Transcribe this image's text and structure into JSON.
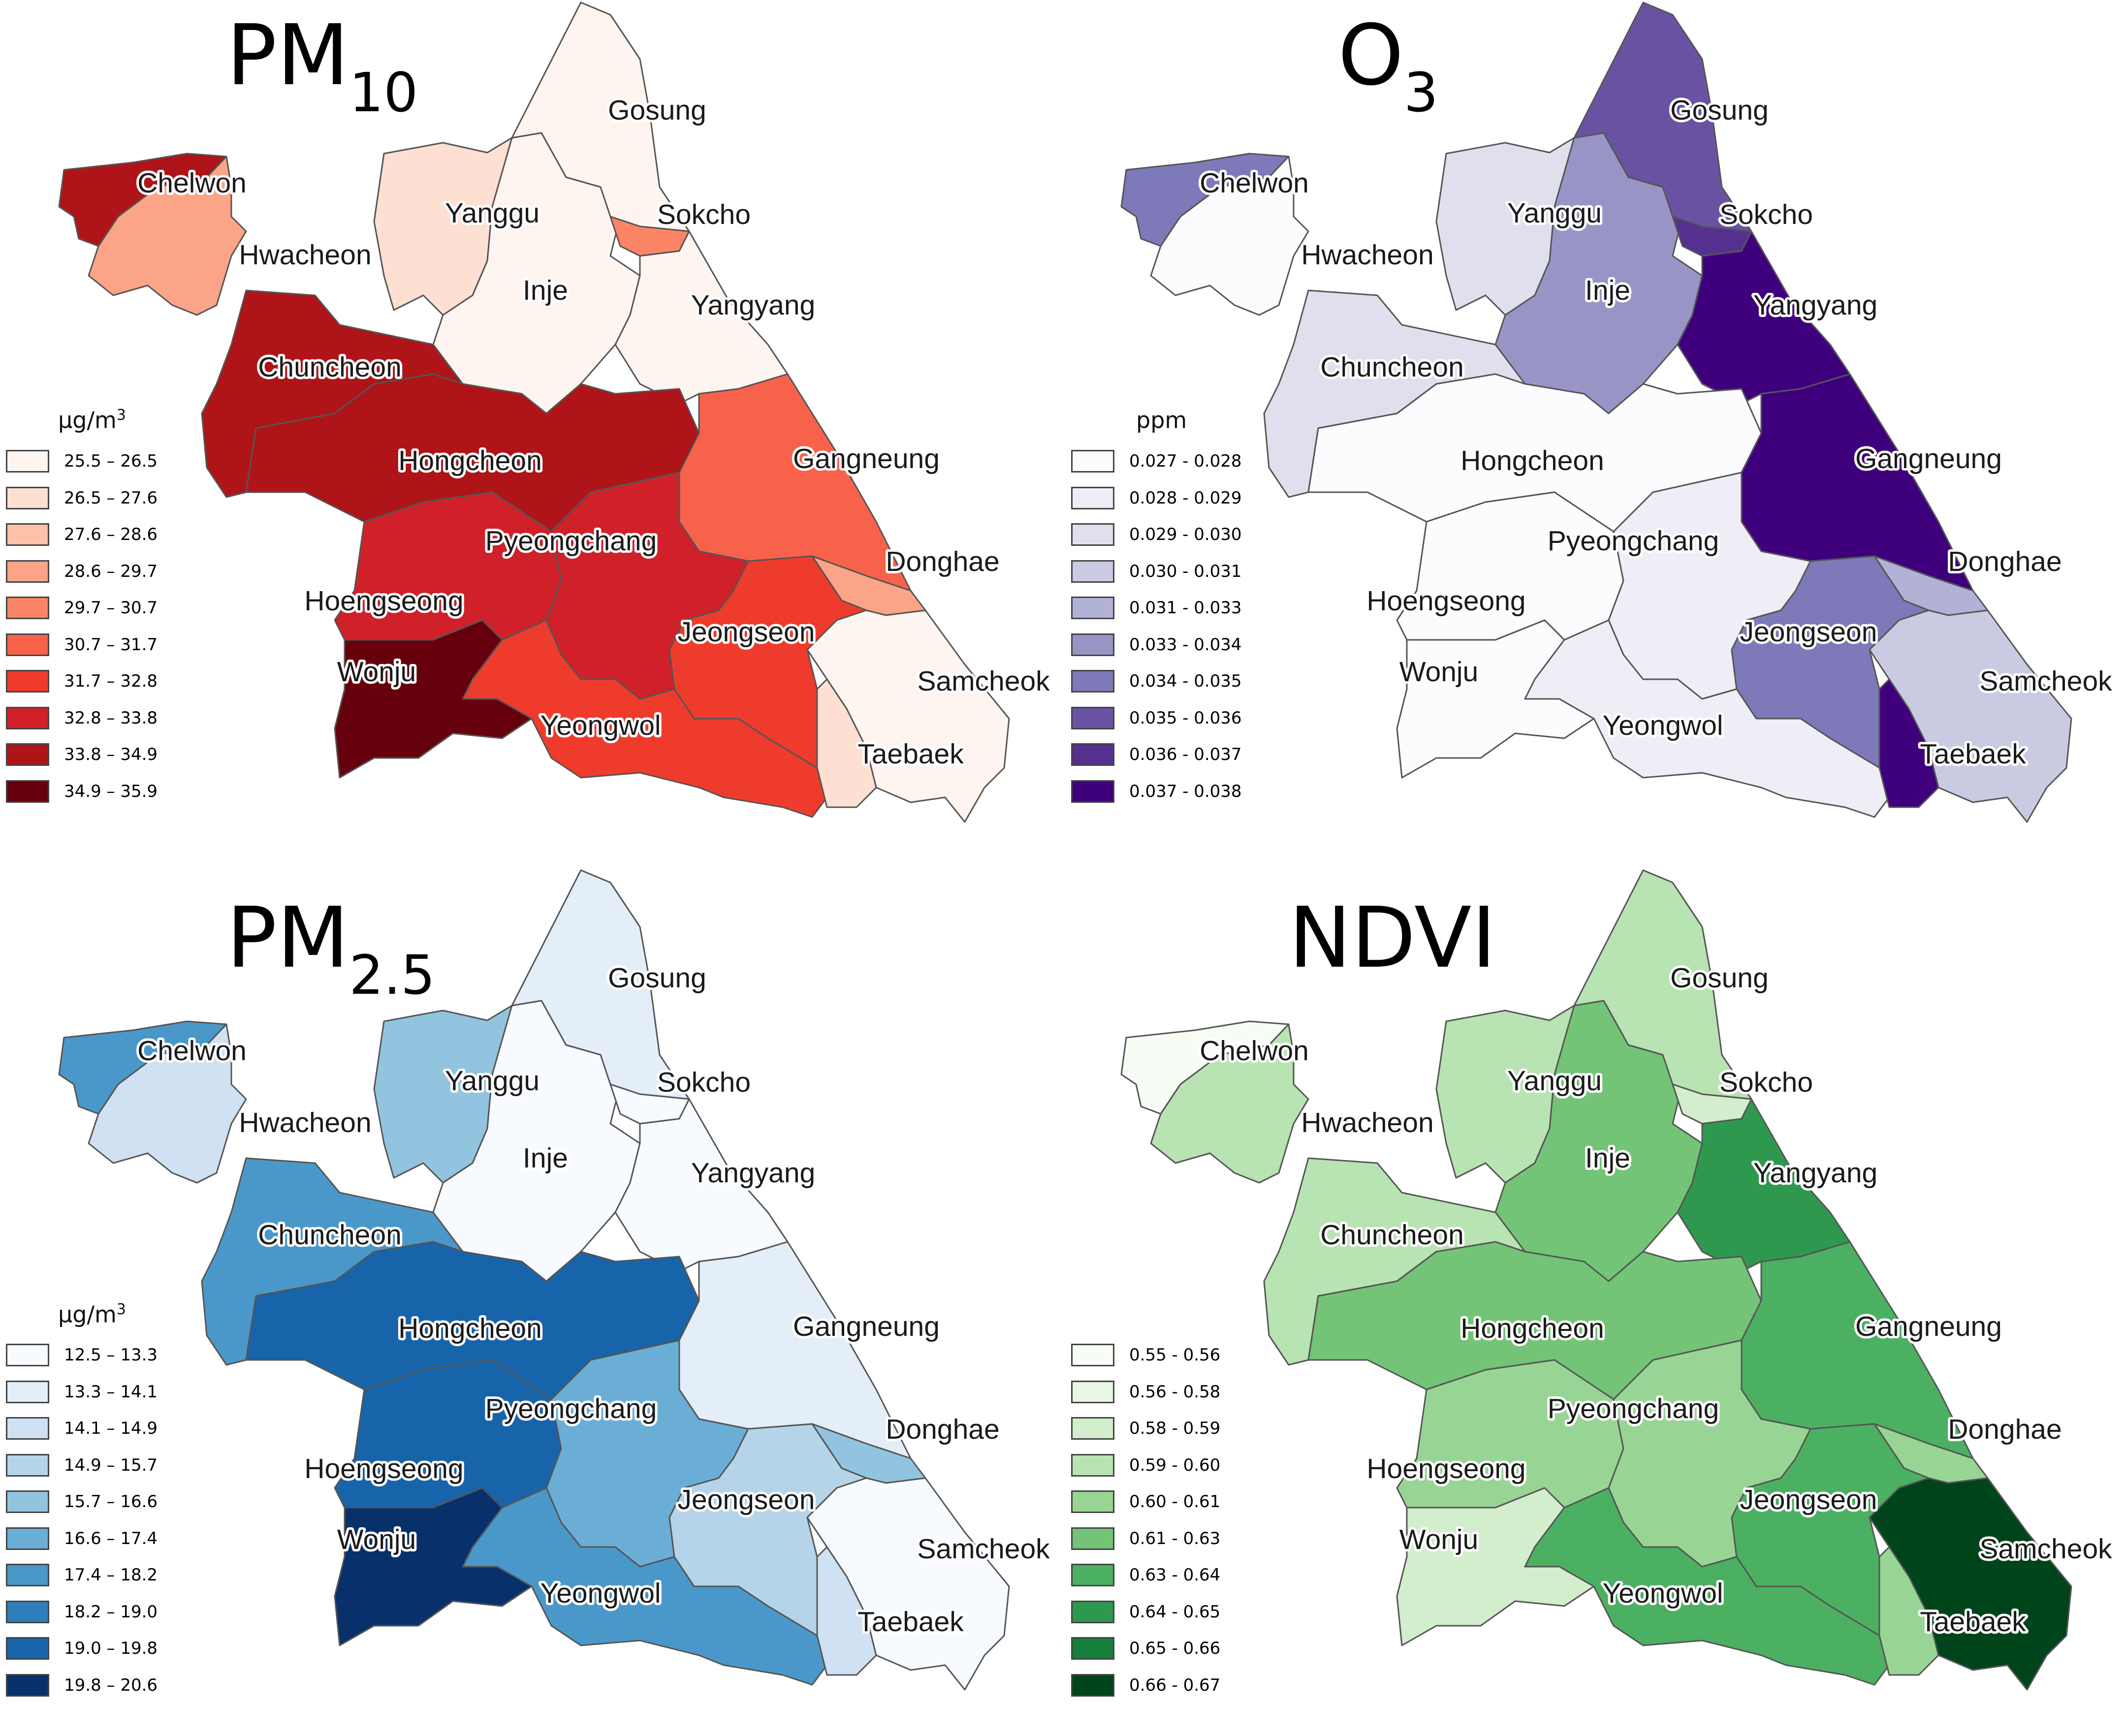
{
  "panels": [
    {
      "id": "pm10",
      "title_main": "PM",
      "title_sub": "10",
      "unit_main": "μg/m",
      "unit_sup": "3",
      "legend": [
        {
          "label": "25.5 – 26.5",
          "color": "#fff5f0"
        },
        {
          "label": "26.5 – 27.6",
          "color": "#fde0d2"
        },
        {
          "label": "27.6 – 28.6",
          "color": "#fcc3aa"
        },
        {
          "label": "28.6 – 29.7",
          "color": "#fca487"
        },
        {
          "label": "29.7 – 30.7",
          "color": "#fb8466"
        },
        {
          "label": "30.7 – 31.7",
          "color": "#f8624a"
        },
        {
          "label": "31.7 – 32.8",
          "color": "#ef3b2c"
        },
        {
          "label": "32.8 – 33.8",
          "color": "#d0202a"
        },
        {
          "label": "33.8 – 34.9",
          "color": "#af1419"
        },
        {
          "label": "34.9 – 35.9",
          "color": "#67000d"
        }
      ],
      "classes": {
        "Chelwon": 8,
        "Hwacheon": 3,
        "Yanggu": 1,
        "Inje": 0,
        "Gosung": 0,
        "Sokcho": 4,
        "Yangyang": 0,
        "Chuncheon": 8,
        "Hongcheon": 8,
        "Gangneung": 5,
        "Pyeongchang": 7,
        "Hoengseong": 7,
        "Donghae": 3,
        "Jeongseon": 6,
        "Wonju": 9,
        "Yeongwol": 6,
        "Samcheok": 0,
        "Taebaek": 1
      }
    },
    {
      "id": "o3",
      "title_main": "O",
      "title_sub": "3",
      "unit_main": "ppm",
      "unit_sup": "",
      "legend": [
        {
          "label": "0.027 - 0.028",
          "color": "#fcfbfd"
        },
        {
          "label": "0.028 - 0.029",
          "color": "#efedf5"
        },
        {
          "label": "0.029 - 0.030",
          "color": "#e0dfee"
        },
        {
          "label": "0.030 - 0.031",
          "color": "#cacae2"
        },
        {
          "label": "0.031 - 0.033",
          "color": "#b2b1d6"
        },
        {
          "label": "0.033 - 0.034",
          "color": "#9895c6"
        },
        {
          "label": "0.034 - 0.035",
          "color": "#7e79b8"
        },
        {
          "label": "0.035 - 0.036",
          "color": "#6a52a3"
        },
        {
          "label": "0.036 - 0.037",
          "color": "#56308f"
        },
        {
          "label": "0.037 - 0.038",
          "color": "#3f007d"
        }
      ],
      "classes": {
        "Chelwon": 6,
        "Hwacheon": 0,
        "Yanggu": 2,
        "Inje": 5,
        "Gosung": 7,
        "Sokcho": 8,
        "Yangyang": 9,
        "Chuncheon": 2,
        "Hongcheon": 0,
        "Gangneung": 9,
        "Pyeongchang": 1,
        "Hoengseong": 0,
        "Donghae": 4,
        "Jeongseon": 6,
        "Wonju": 0,
        "Yeongwol": 1,
        "Samcheok": 3,
        "Taebaek": 9
      }
    },
    {
      "id": "pm25",
      "title_main": "PM",
      "title_sub": "2.5",
      "unit_main": "μg/m",
      "unit_sup": "3",
      "legend": [
        {
          "label": "12.5 – 13.3",
          "color": "#f7fbff"
        },
        {
          "label": "13.3 – 14.1",
          "color": "#e3eef9"
        },
        {
          "label": "14.1 – 14.9",
          "color": "#cfe1f2"
        },
        {
          "label": "14.9 – 15.7",
          "color": "#b5d4e9"
        },
        {
          "label": "15.7 – 16.6",
          "color": "#93c4df"
        },
        {
          "label": "16.6 – 17.4",
          "color": "#6aaed6"
        },
        {
          "label": "17.4 – 18.2",
          "color": "#4a98c9"
        },
        {
          "label": "18.2 – 19.0",
          "color": "#2e7ebc"
        },
        {
          "label": "19.0 – 19.8",
          "color": "#1764ab"
        },
        {
          "label": "19.8 – 20.6",
          "color": "#08306b"
        }
      ],
      "classes": {
        "Chelwon": 6,
        "Hwacheon": 2,
        "Yanggu": 4,
        "Inje": 0,
        "Gosung": 1,
        "Sokcho": 0,
        "Yangyang": 0,
        "Chuncheon": 6,
        "Hongcheon": 8,
        "Gangneung": 1,
        "Pyeongchang": 5,
        "Hoengseong": 8,
        "Donghae": 4,
        "Jeongseon": 3,
        "Wonju": 9,
        "Yeongwol": 6,
        "Samcheok": 0,
        "Taebaek": 2
      }
    },
    {
      "id": "ndvi",
      "title_main": "NDVI",
      "title_sub": "",
      "unit_main": "",
      "unit_sup": "",
      "legend": [
        {
          "label": "0.55 - 0.56",
          "color": "#f7fcf5"
        },
        {
          "label": "0.56 - 0.58",
          "color": "#e8f6e3"
        },
        {
          "label": "0.58 - 0.59",
          "color": "#d3eecd"
        },
        {
          "label": "0.59 - 0.60",
          "color": "#b8e3b2"
        },
        {
          "label": "0.60 - 0.61",
          "color": "#98d594"
        },
        {
          "label": "0.61 - 0.63",
          "color": "#73c476"
        },
        {
          "label": "0.63 - 0.64",
          "color": "#4bb062"
        },
        {
          "label": "0.64 - 0.65",
          "color": "#2f984f"
        },
        {
          "label": "0.65 - 0.66",
          "color": "#157f3b"
        },
        {
          "label": "0.66 - 0.67",
          "color": "#00441b"
        }
      ],
      "classes": {
        "Chelwon": 0,
        "Hwacheon": 3,
        "Yanggu": 3,
        "Inje": 5,
        "Gosung": 3,
        "Sokcho": 2,
        "Yangyang": 7,
        "Chuncheon": 3,
        "Hongcheon": 5,
        "Gangneung": 6,
        "Pyeongchang": 4,
        "Hoengseong": 4,
        "Donghae": 4,
        "Jeongseon": 6,
        "Wonju": 2,
        "Yeongwol": 6,
        "Samcheok": 9,
        "Taebaek": 4
      }
    }
  ],
  "region_names": {
    "Chelwon": "Chelwon",
    "Hwacheon": "Hwacheon",
    "Yanggu": "Yanggu",
    "Inje": "Inje",
    "Gosung": "Gosung",
    "Sokcho": "Sokcho",
    "Yangyang": "Yangyang",
    "Chuncheon": "Chuncheon",
    "Hongcheon": "Hongcheon",
    "Gangneung": "Gangneung",
    "Pyeongchang": "Pyeongchang",
    "Hoengseong": "Hoengseong",
    "Donghae": "Donghae",
    "Jeongseon": "Jeongseon",
    "Wonju": "Wonju",
    "Yeongwol": "Yeongwol",
    "Samcheok": "Samcheok",
    "Taebaek": "Taebaek"
  }
}
